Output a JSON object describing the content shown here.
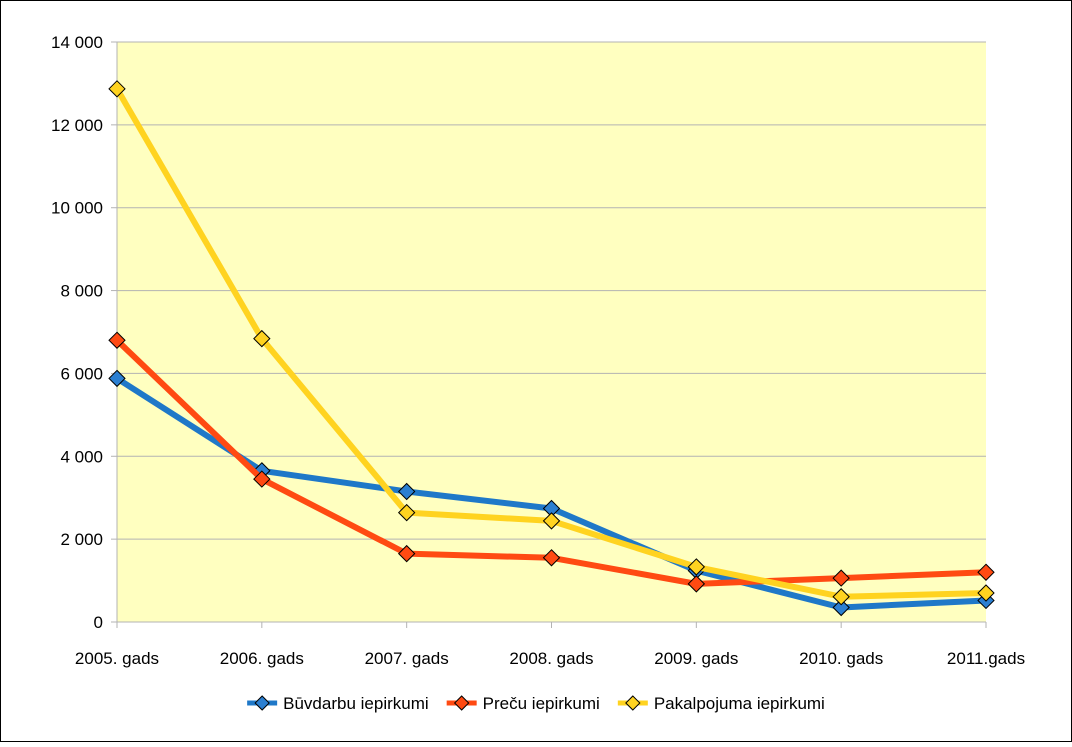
{
  "chart_data": {
    "type": "line",
    "categories": [
      "2005. gads",
      "2006. gads",
      "2007. gads",
      "2008. gads",
      "2009. gads",
      "2010. gads",
      "2011.gads"
    ],
    "series": [
      {
        "name": "Būvdarbu iepirkumi",
        "color": "#1f78c8",
        "marker_color": "#2b7fd1",
        "values": [
          5880,
          3650,
          3150,
          2740,
          1240,
          350,
          520
        ]
      },
      {
        "name": "Preču iepirkumi",
        "color": "#ff4a12",
        "marker_color": "#ff4a12",
        "values": [
          6800,
          3450,
          1650,
          1550,
          920,
          1060,
          1200
        ]
      },
      {
        "name": "Pakalpojuma iepirkumi",
        "color": "#ffd320",
        "marker_color": "#ffd320",
        "values": [
          12870,
          6840,
          2640,
          2440,
          1330,
          610,
          700
        ]
      }
    ],
    "ylim": [
      0,
      14000
    ],
    "yticks": [
      0,
      2000,
      4000,
      6000,
      8000,
      10000,
      12000,
      14000
    ],
    "ytick_labels": [
      "0",
      "2 000",
      "4 000",
      "6 000",
      "8 000",
      "10 000",
      "12 000",
      "14 000"
    ],
    "grid": true,
    "legend_position": "bottom",
    "plot_background": "#ffffc0"
  }
}
